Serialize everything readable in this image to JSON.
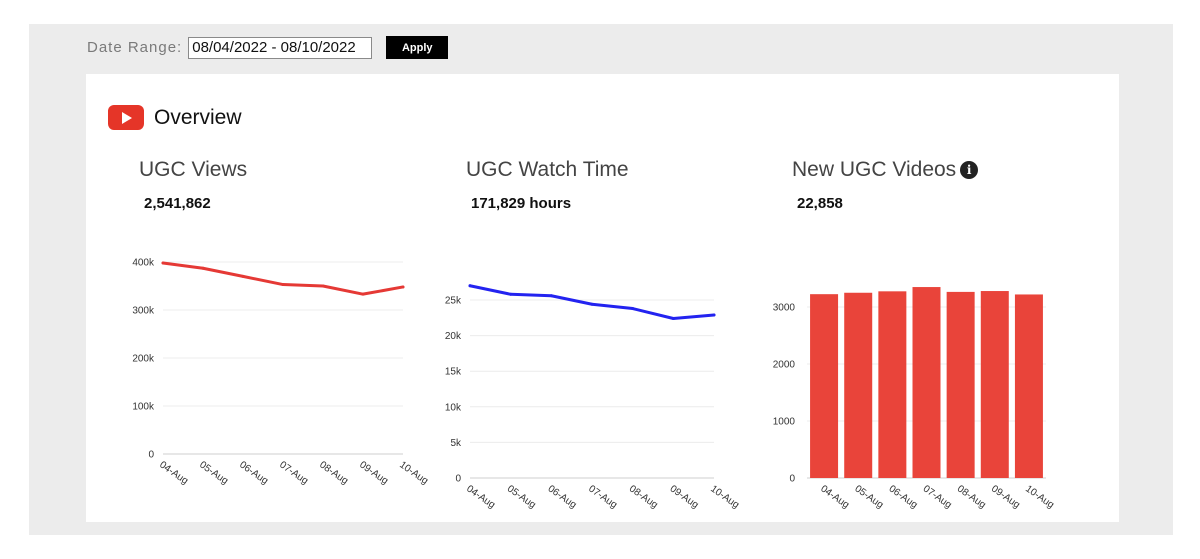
{
  "date_range": {
    "label": "Date Range:",
    "value": "08/04/2022 - 08/10/2022",
    "apply_label": "Apply"
  },
  "overview": {
    "title": "Overview",
    "icon": "youtube-icon"
  },
  "metrics": [
    {
      "title": "UGC Views",
      "value": "2,541,862"
    },
    {
      "title": "UGC Watch Time",
      "value": "171,829 hours"
    },
    {
      "title": "New UGC Videos",
      "value": "22,858",
      "info_icon": "info-icon"
    }
  ],
  "colors": {
    "views_line": "#e53935",
    "watch_line": "#2323f0",
    "videos_bar": "#e9443a"
  },
  "chart_data": [
    {
      "type": "line",
      "title": "UGC Views",
      "categories": [
        "04-Aug",
        "05-Aug",
        "06-Aug",
        "07-Aug",
        "08-Aug",
        "09-Aug",
        "10-Aug"
      ],
      "values": [
        398000,
        387000,
        370000,
        353000,
        350000,
        333000,
        348000
      ],
      "ylim": [
        0,
        400000
      ],
      "yticks": [
        0,
        100000,
        200000,
        300000,
        400000
      ],
      "ytick_labels": [
        "0",
        "100k",
        "200k",
        "300k",
        "400k"
      ],
      "grid": true
    },
    {
      "type": "line",
      "title": "UGC Watch Time",
      "categories": [
        "04-Aug",
        "05-Aug",
        "06-Aug",
        "07-Aug",
        "08-Aug",
        "09-Aug",
        "10-Aug"
      ],
      "values": [
        27000,
        25800,
        25600,
        24400,
        23800,
        22400,
        22900
      ],
      "ylim": [
        0,
        25000
      ],
      "yticks": [
        0,
        5000,
        10000,
        15000,
        20000,
        25000
      ],
      "ytick_labels": [
        "0",
        "5k",
        "10k",
        "15k",
        "20k",
        "25k"
      ],
      "grid": true
    },
    {
      "type": "bar",
      "title": "New UGC Videos",
      "categories": [
        "04-Aug",
        "05-Aug",
        "06-Aug",
        "07-Aug",
        "08-Aug",
        "09-Aug",
        "10-Aug"
      ],
      "values": [
        3225,
        3250,
        3275,
        3350,
        3265,
        3280,
        3220
      ],
      "ylim": [
        0,
        3000
      ],
      "yticks": [
        0,
        1000,
        2000,
        3000
      ],
      "ytick_labels": [
        "0",
        "1000",
        "2000",
        "3000"
      ],
      "grid": true
    }
  ]
}
